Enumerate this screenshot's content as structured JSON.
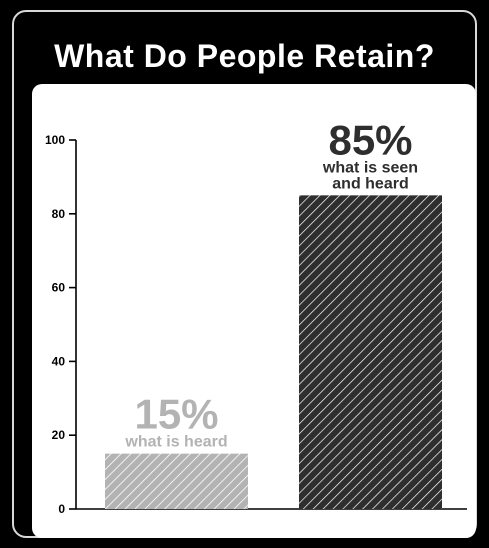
{
  "title": "What Do People Retain?",
  "colors": {
    "background": "#000000",
    "panel": "#ffffff",
    "heard": "#b3b3b3",
    "seen_and_heard": "#2e2e2e"
  },
  "chart_data": {
    "type": "bar",
    "title": "What Do People Retain?",
    "xlabel": "",
    "ylabel": "",
    "ylim": [
      0,
      100
    ],
    "yticks": [
      0,
      20,
      40,
      60,
      80,
      100
    ],
    "categories": [
      "what is heard",
      "what is seen and heard"
    ],
    "values": [
      15,
      85
    ],
    "data_labels": [
      "15%",
      "85%"
    ],
    "category_label_lines": [
      [
        "what is heard"
      ],
      [
        "what is seen",
        "and heard"
      ]
    ],
    "bar_fill": "diagonal-hatch",
    "grid": false,
    "legend": "none"
  }
}
